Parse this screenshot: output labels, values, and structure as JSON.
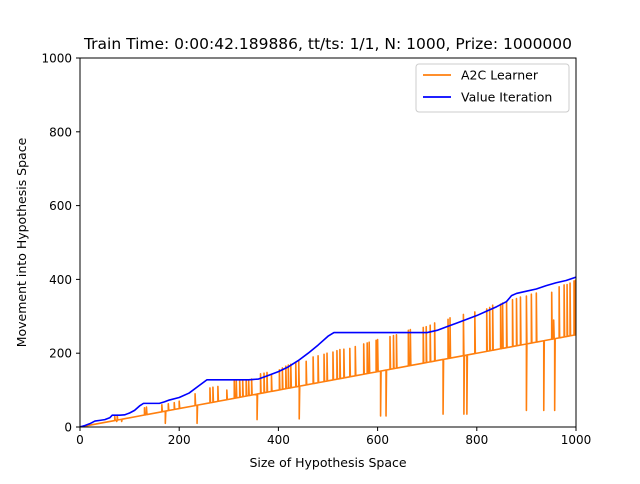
{
  "chart_data": {
    "type": "line",
    "title": "Train Time: 0:00:42.189886, tt/ts: 1/1, N: 1000, Prize: 1000000",
    "xlabel": "Size of Hypothesis Space",
    "ylabel": "Movement into Hypothesis Space",
    "xlim": [
      0,
      1000
    ],
    "ylim": [
      0,
      1000
    ],
    "xticks": [
      "0",
      "200",
      "400",
      "600",
      "800",
      "1000"
    ],
    "yticks": [
      "0",
      "200",
      "400",
      "600",
      "800",
      "1000"
    ],
    "grid": false,
    "legend_position": "top-right",
    "series": [
      {
        "name": "A2C Learner",
        "color": "#ff7f0e",
        "baseline_slope": 0.25,
        "baseline_intercept": 0,
        "spikes_up": [
          [
            70,
            30
          ],
          [
            75,
            32
          ],
          [
            130,
            52
          ],
          [
            134,
            54
          ],
          [
            165,
            60
          ],
          [
            178,
            63
          ],
          [
            190,
            66
          ],
          [
            200,
            70
          ],
          [
            232,
            90
          ],
          [
            262,
            106
          ],
          [
            268,
            108
          ],
          [
            278,
            110
          ],
          [
            296,
            100
          ],
          [
            311,
            125
          ],
          [
            315,
            128
          ],
          [
            322,
            126
          ],
          [
            328,
            128
          ],
          [
            335,
            128
          ],
          [
            340,
            128
          ],
          [
            346,
            130
          ],
          [
            364,
            144
          ],
          [
            371,
            146
          ],
          [
            377,
            148
          ],
          [
            386,
            142
          ],
          [
            402,
            155
          ],
          [
            408,
            160
          ],
          [
            415,
            165
          ],
          [
            420,
            168
          ],
          [
            425,
            170
          ],
          [
            435,
            175
          ],
          [
            441,
            178
          ],
          [
            456,
            178
          ],
          [
            470,
            190
          ],
          [
            480,
            193
          ],
          [
            492,
            197
          ],
          [
            498,
            200
          ],
          [
            510,
            203
          ],
          [
            518,
            207
          ],
          [
            524,
            210
          ],
          [
            532,
            211
          ],
          [
            544,
            213
          ],
          [
            555,
            218
          ],
          [
            572,
            225
          ],
          [
            579,
            228
          ],
          [
            583,
            230
          ],
          [
            597,
            235
          ],
          [
            600,
            237
          ],
          [
            625,
            245
          ],
          [
            632,
            248
          ],
          [
            638,
            250
          ],
          [
            662,
            262
          ],
          [
            666,
            264
          ],
          [
            692,
            270
          ],
          [
            698,
            272
          ],
          [
            706,
            276
          ],
          [
            715,
            282
          ],
          [
            742,
            292
          ],
          [
            746,
            296
          ],
          [
            773,
            305
          ],
          [
            796,
            312
          ],
          [
            820,
            320
          ],
          [
            826,
            324
          ],
          [
            832,
            330
          ],
          [
            848,
            333
          ],
          [
            852,
            336
          ],
          [
            860,
            340
          ],
          [
            872,
            345
          ],
          [
            880,
            348
          ],
          [
            888,
            352
          ],
          [
            900,
            355
          ],
          [
            910,
            360
          ],
          [
            920,
            363
          ],
          [
            951,
            365
          ],
          [
            955,
            290
          ],
          [
            966,
            380
          ],
          [
            976,
            385
          ],
          [
            982,
            386
          ],
          [
            988,
            390
          ],
          [
            996,
            396
          ],
          [
            999,
            398
          ]
        ],
        "spikes_down": [
          [
            74,
            15
          ],
          [
            84,
            15
          ],
          [
            172,
            10
          ],
          [
            236,
            10
          ],
          [
            357,
            20
          ],
          [
            442,
            22
          ],
          [
            606,
            30
          ],
          [
            617,
            30
          ],
          [
            732,
            35
          ],
          [
            774,
            35
          ],
          [
            780,
            35
          ],
          [
            900,
            45
          ],
          [
            935,
            45
          ],
          [
            957,
            45
          ]
        ]
      },
      {
        "name": "Value Iteration",
        "color": "#0000ff",
        "x": [
          0,
          10,
          20,
          30,
          40,
          50,
          60,
          65,
          70,
          80,
          90,
          100,
          110,
          120,
          128,
          135,
          140,
          160,
          170,
          180,
          200,
          220,
          240,
          256,
          280,
          300,
          320,
          340,
          360,
          380,
          400,
          420,
          440,
          460,
          480,
          500,
          512,
          540,
          560,
          580,
          600,
          620,
          640,
          660,
          680,
          700,
          720,
          740,
          760,
          780,
          800,
          820,
          840,
          860,
          870,
          880,
          900,
          920,
          940,
          960,
          980,
          1000
        ],
        "y": [
          0,
          4,
          9,
          16,
          18,
          20,
          25,
          32,
          32,
          32,
          33,
          38,
          45,
          57,
          64,
          64,
          64,
          64,
          68,
          73,
          80,
          92,
          112,
          128,
          128,
          128,
          128,
          128,
          130,
          140,
          150,
          163,
          180,
          200,
          222,
          246,
          256,
          256,
          256,
          256,
          256,
          256,
          256,
          256,
          256,
          256,
          262,
          272,
          282,
          292,
          302,
          314,
          326,
          340,
          356,
          362,
          368,
          374,
          383,
          391,
          397,
          406
        ]
      }
    ]
  }
}
